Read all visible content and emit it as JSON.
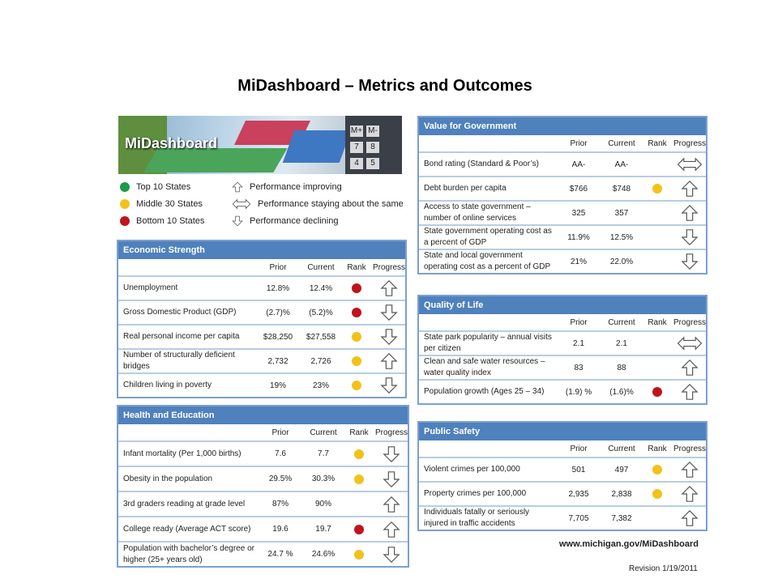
{
  "title": "MiDashboard – Metrics and Outcomes",
  "banner": {
    "logo_text": "MiDashboard",
    "calc_keys": [
      "M+",
      "M-",
      "7",
      "8",
      "4",
      "5"
    ]
  },
  "legend": {
    "ranks": [
      {
        "label": "Top 10 States",
        "color": "#1a9c4b"
      },
      {
        "label": "Middle 30 States",
        "color": "#f2c21a"
      },
      {
        "label": "Bottom 10 States",
        "color": "#c0141c"
      }
    ],
    "progress": [
      {
        "label": "Performance improving",
        "icon": "up-arrow-icon"
      },
      {
        "label": "Performance staying about the same",
        "icon": "double-arrow-icon"
      },
      {
        "label": "Performance declining",
        "icon": "down-arrow-icon"
      }
    ]
  },
  "columns": {
    "prior": "Prior",
    "current": "Current",
    "rank": "Rank",
    "progress": "Progress"
  },
  "panels": {
    "economic": {
      "title": "Economic Strength",
      "rows": [
        {
          "name": "Unemployment",
          "prior": "12.8%",
          "current": "12.4%",
          "rank": "red",
          "progress": "up"
        },
        {
          "name": "Gross Domestic Product (GDP)",
          "prior": "(2.7)%",
          "current": "(5.2)%",
          "rank": "red",
          "progress": "down"
        },
        {
          "name": "Real personal income per capita",
          "prior": "$28,250",
          "current": "$27,558",
          "rank": "yellow",
          "progress": "down"
        },
        {
          "name": "Number of structurally deficient bridges",
          "prior": "2,732",
          "current": "2,726",
          "rank": "yellow",
          "progress": "up"
        },
        {
          "name": "Children living in poverty",
          "prior": "19%",
          "current": "23%",
          "rank": "yellow",
          "progress": "down"
        }
      ]
    },
    "health": {
      "title": "Health and Education",
      "rows": [
        {
          "name": "Infant mortality (Per 1,000 births)",
          "prior": "7.6",
          "current": "7.7",
          "rank": "yellow",
          "progress": "down"
        },
        {
          "name": "Obesity in the population",
          "prior": "29.5%",
          "current": "30.3%",
          "rank": "yellow",
          "progress": "down"
        },
        {
          "name": "3rd graders reading at grade level",
          "prior": "87%",
          "current": "90%",
          "rank": "",
          "progress": "up"
        },
        {
          "name": "College ready (Average ACT score)",
          "prior": "19.6",
          "current": "19.7",
          "rank": "red",
          "progress": "up"
        },
        {
          "name": "Population with bachelor’s degree or higher  (25+ years old)",
          "prior": "24.7 %",
          "current": "24.6%",
          "rank": "yellow",
          "progress": "down"
        }
      ]
    },
    "government": {
      "title": "Value for Government",
      "rows": [
        {
          "name": "Bond rating (Standard & Poor’s)",
          "prior": "AA-",
          "current": "AA-",
          "rank": "",
          "progress": "same"
        },
        {
          "name": "Debt burden per capita",
          "prior": "$766",
          "current": "$748",
          "rank": "yellow",
          "progress": "up"
        },
        {
          "name": "Access to state government – number of online services",
          "prior": "325",
          "current": "357",
          "rank": "",
          "progress": "up"
        },
        {
          "name": "State government operating cost as a percent of GDP",
          "prior": "11.9%",
          "current": "12.5%",
          "rank": "",
          "progress": "down"
        },
        {
          "name": "State and  local government operating cost as a percent of GDP",
          "prior": "21%",
          "current": "22.0%",
          "rank": "",
          "progress": "down"
        }
      ]
    },
    "quality": {
      "title": "Quality of Life",
      "rows": [
        {
          "name": "State park popularity – annual visits per citizen",
          "prior": "2.1",
          "current": "2.1",
          "rank": "",
          "progress": "same"
        },
        {
          "name": "Clean and safe water resources – water quality index",
          "prior": "83",
          "current": "88",
          "rank": "",
          "progress": "up"
        },
        {
          "name": "Population growth (Ages 25 – 34)",
          "prior": "(1.9) %",
          "current": "(1.6)%",
          "rank": "red",
          "progress": "up"
        }
      ]
    },
    "safety": {
      "title": "Public Safety",
      "rows": [
        {
          "name": "Violent crimes per 100,000",
          "prior": "501",
          "current": "497",
          "rank": "yellow",
          "progress": "up"
        },
        {
          "name": "Property crimes per 100,000",
          "prior": "2,935",
          "current": "2,838",
          "rank": "yellow",
          "progress": "up"
        },
        {
          "name": "Individuals fatally or seriously injured in traffic accidents",
          "prior": "7,705",
          "current": "7,382",
          "rank": "",
          "progress": "up"
        }
      ]
    }
  },
  "rank_colors": {
    "red": "#c0141c",
    "yellow": "#f2c21a",
    "green": "#1a9c4b"
  },
  "footer": {
    "url": "www.michigan.gov/MiDashboard",
    "revision": "Revision 1/19/2011"
  }
}
